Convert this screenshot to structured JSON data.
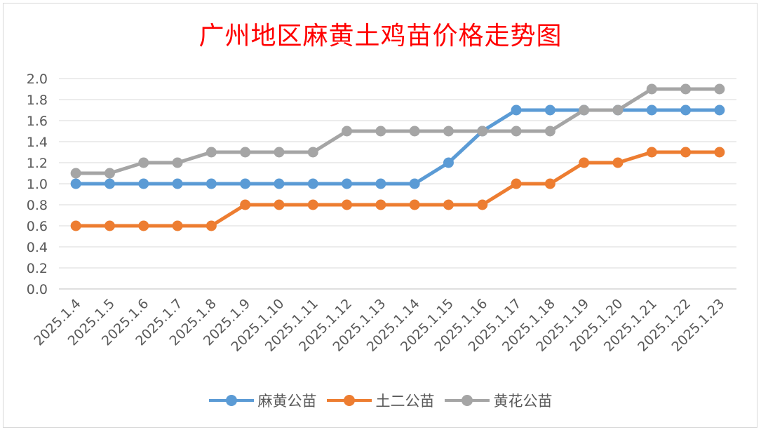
{
  "chart_data": {
    "type": "line",
    "title": "广州地区麻黄土鸡苗价格走势图",
    "xlabel": "",
    "ylabel": "",
    "ylim": [
      0,
      2.0
    ],
    "ytick_step": 0.2,
    "grid": true,
    "legend_position": "bottom",
    "categories": [
      "2025.1.4",
      "2025.1.5",
      "2025.1.6",
      "2025.1.7",
      "2025.1.8",
      "2025.1.9",
      "2025.1.10",
      "2025.1.11",
      "2025.1.12",
      "2025.1.13",
      "2025.1.14",
      "2025.1.15",
      "2025.1.16",
      "2025.1.17",
      "2025.1.18",
      "2025.1.19",
      "2025.1.20",
      "2025.1.21",
      "2025.1.22",
      "2025.1.23"
    ],
    "series": [
      {
        "name": "麻黄公苗",
        "color": "#5b9bd5",
        "values": [
          1.0,
          1.0,
          1.0,
          1.0,
          1.0,
          1.0,
          1.0,
          1.0,
          1.0,
          1.0,
          1.0,
          1.2,
          1.5,
          1.7,
          1.7,
          1.7,
          1.7,
          1.7,
          1.7,
          1.7
        ]
      },
      {
        "name": "土二公苗",
        "color": "#ed7d31",
        "values": [
          0.6,
          0.6,
          0.6,
          0.6,
          0.6,
          0.8,
          0.8,
          0.8,
          0.8,
          0.8,
          0.8,
          0.8,
          0.8,
          1.0,
          1.0,
          1.2,
          1.2,
          1.3,
          1.3,
          1.3
        ]
      },
      {
        "name": "黄花公苗",
        "color": "#a5a5a5",
        "values": [
          1.1,
          1.1,
          1.2,
          1.2,
          1.3,
          1.3,
          1.3,
          1.3,
          1.5,
          1.5,
          1.5,
          1.5,
          1.5,
          1.5,
          1.5,
          1.7,
          1.7,
          1.9,
          1.9,
          1.9
        ]
      }
    ]
  }
}
